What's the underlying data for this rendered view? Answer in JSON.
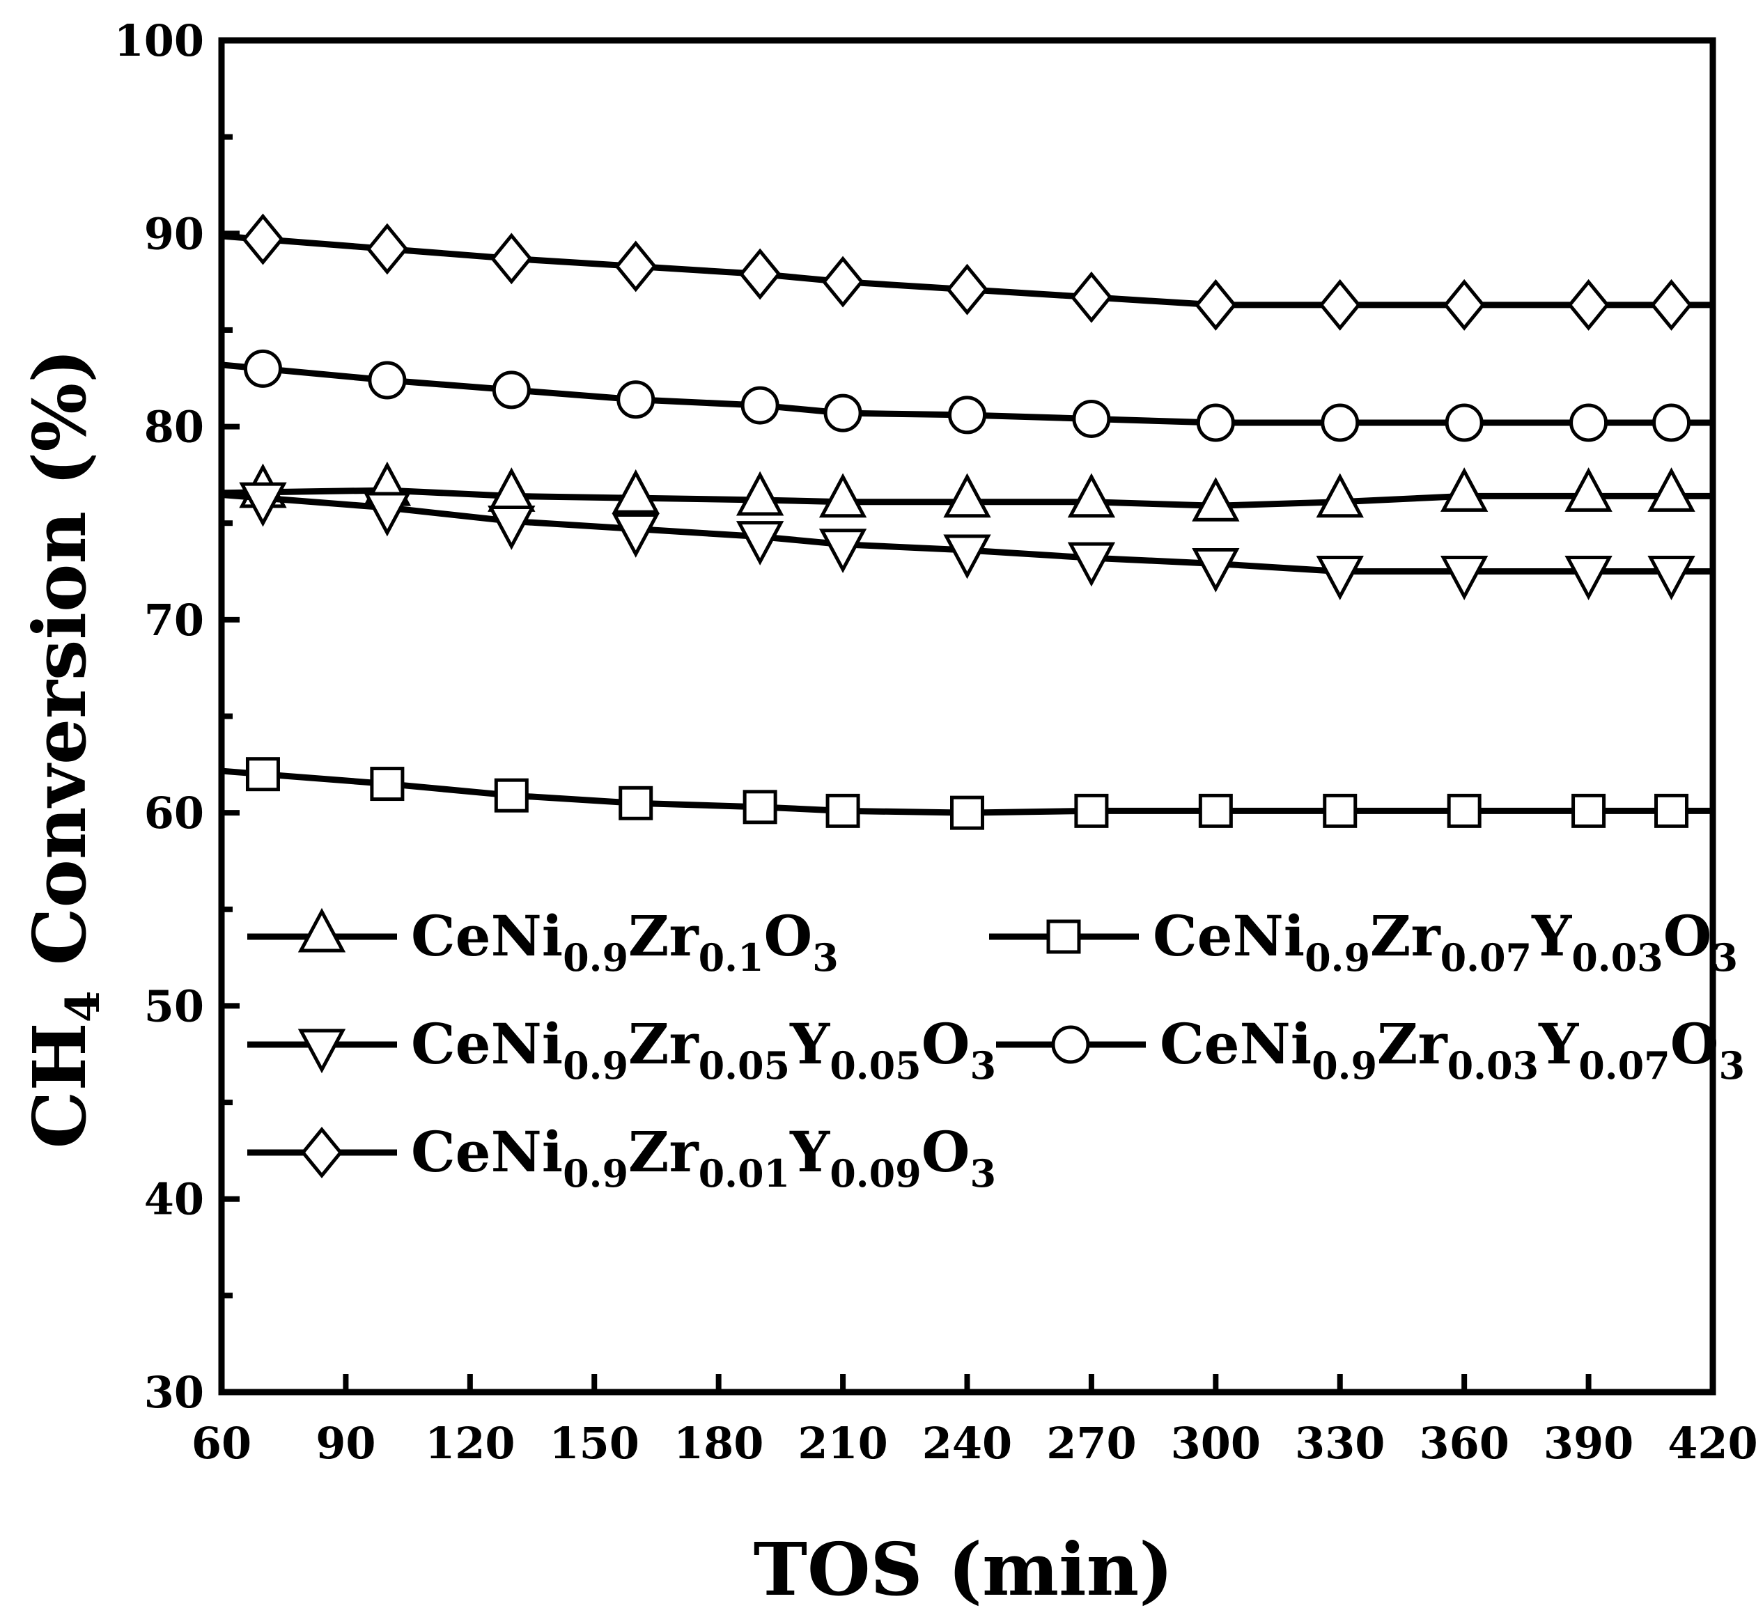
{
  "chart_data": {
    "type": "line",
    "title": "",
    "xlabel": "TOS (min)",
    "ylabel_main": "CH",
    "ylabel_sub": "4",
    "ylabel_rest": " Conversion (%)",
    "xlim": [
      60,
      420
    ],
    "ylim": [
      30,
      100
    ],
    "xticks": [
      60,
      90,
      120,
      150,
      180,
      210,
      240,
      270,
      300,
      330,
      360,
      390,
      420
    ],
    "yticks": [
      30,
      40,
      50,
      60,
      70,
      80,
      90,
      100
    ],
    "grid": false,
    "legend_position": "lower-left",
    "x": [
      70,
      100,
      130,
      160,
      190,
      210,
      240,
      270,
      300,
      330,
      360,
      390,
      410
    ],
    "series": [
      {
        "name": "CeNi0.9Zr0.1O3",
        "marker": "triangle-up",
        "label_parts": [
          [
            "CeNi",
            ""
          ],
          [
            "0.9",
            "sub"
          ],
          [
            "Zr",
            ""
          ],
          [
            "0.1",
            "sub"
          ],
          [
            "O",
            ""
          ],
          [
            "3",
            "sub"
          ]
        ],
        "values": [
          76.6,
          76.7,
          76.4,
          76.3,
          76.2,
          76.1,
          76.1,
          76.1,
          75.9,
          76.1,
          76.4,
          76.4,
          76.4
        ]
      },
      {
        "name": "CeNi0.9Zr0.07Y0.03O3",
        "marker": "square",
        "label_parts": [
          [
            "CeNi",
            ""
          ],
          [
            "0.9",
            "sub"
          ],
          [
            "Zr",
            ""
          ],
          [
            "0.07",
            "sub"
          ],
          [
            "Y",
            ""
          ],
          [
            "0.03",
            "sub"
          ],
          [
            "O",
            ""
          ],
          [
            "3",
            "sub"
          ]
        ],
        "values": [
          62.0,
          61.5,
          60.9,
          60.5,
          60.3,
          60.1,
          60.0,
          60.1,
          60.1,
          60.1,
          60.1,
          60.1,
          60.1
        ]
      },
      {
        "name": "CeNi0.9Zr0.05Y0.05O3",
        "marker": "triangle-down",
        "label_parts": [
          [
            "CeNi",
            ""
          ],
          [
            "0.9",
            "sub"
          ],
          [
            "Zr",
            ""
          ],
          [
            "0.05",
            "sub"
          ],
          [
            "Y",
            ""
          ],
          [
            "0.05",
            "sub"
          ],
          [
            "O",
            ""
          ],
          [
            "3",
            "sub"
          ]
        ],
        "values": [
          76.3,
          75.8,
          75.1,
          74.7,
          74.3,
          73.9,
          73.6,
          73.2,
          72.9,
          72.5,
          72.5,
          72.5,
          72.5
        ]
      },
      {
        "name": "CeNi0.9Zr0.03Y0.07O3",
        "marker": "circle",
        "label_parts": [
          [
            "CeNi",
            ""
          ],
          [
            "0.9",
            "sub"
          ],
          [
            "Zr",
            ""
          ],
          [
            "0.03",
            "sub"
          ],
          [
            "Y",
            ""
          ],
          [
            "0.07",
            "sub"
          ],
          [
            "O",
            ""
          ],
          [
            "3",
            "sub"
          ]
        ],
        "values": [
          83.0,
          82.4,
          81.9,
          81.4,
          81.1,
          80.7,
          80.6,
          80.4,
          80.2,
          80.2,
          80.2,
          80.2,
          80.2
        ]
      },
      {
        "name": "CeNi0.9Zr0.01Y0.09O3",
        "marker": "diamond",
        "label_parts": [
          [
            "CeNi",
            ""
          ],
          [
            "0.9",
            "sub"
          ],
          [
            "Zr",
            ""
          ],
          [
            "0.01",
            "sub"
          ],
          [
            "Y",
            ""
          ],
          [
            "0.09",
            "sub"
          ],
          [
            "O",
            ""
          ],
          [
            "3",
            "sub"
          ]
        ],
        "values": [
          89.7,
          89.2,
          88.7,
          88.3,
          87.9,
          87.5,
          87.1,
          86.7,
          86.3,
          86.3,
          86.3,
          86.3,
          86.3
        ]
      }
    ]
  }
}
